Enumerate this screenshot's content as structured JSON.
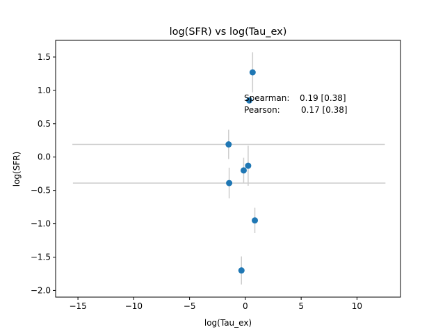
{
  "chart_data": {
    "type": "scatter",
    "title": "log(SFR) vs log(Tau_ex)",
    "xlabel": "log(Tau_ex)",
    "ylabel": "log(SFR)",
    "xlim": [
      -17.0,
      13.9
    ],
    "ylim": [
      -2.1,
      1.75
    ],
    "xticks": [
      -15,
      -10,
      -5,
      0,
      5,
      10
    ],
    "xtick_labels": [
      "−15",
      "−10",
      "−5",
      "0",
      "5",
      "10"
    ],
    "yticks": [
      -2.0,
      -1.5,
      -1.0,
      -0.5,
      0.0,
      0.5,
      1.0,
      1.5
    ],
    "ytick_labels": [
      "−2.0",
      "−1.5",
      "−1.0",
      "−0.5",
      "0.0",
      "0.5",
      "1.0",
      "1.5"
    ],
    "grid": false,
    "marker_color": "#1f77b4",
    "errorbar_color": "#cccccc",
    "points": [
      {
        "x": 0.65,
        "y": 1.27,
        "yerr": 0.3,
        "xerr": 0
      },
      {
        "x": 0.35,
        "y": 0.85,
        "yerr": 0,
        "xerr": 0
      },
      {
        "x": -1.5,
        "y": 0.19,
        "yerr": 0.22,
        "xerr": 14.0
      },
      {
        "x": 0.25,
        "y": -0.13,
        "yerr": 0.3,
        "xerr": 0
      },
      {
        "x": -0.15,
        "y": -0.2,
        "yerr": 0.19,
        "xerr": 0
      },
      {
        "x": -1.45,
        "y": -0.39,
        "yerr": 0.23,
        "xerr": 14.0
      },
      {
        "x": 0.85,
        "y": -0.95,
        "yerr": 0.19,
        "xerr": 0
      },
      {
        "x": -0.35,
        "y": -1.7,
        "yerr": 0.21,
        "xerr": 0
      }
    ],
    "annotations": [
      {
        "label": "Spearman:",
        "value": "0.19 [0.38]"
      },
      {
        "label": "Pearson:",
        "value": "0.17 [0.38]"
      }
    ]
  }
}
